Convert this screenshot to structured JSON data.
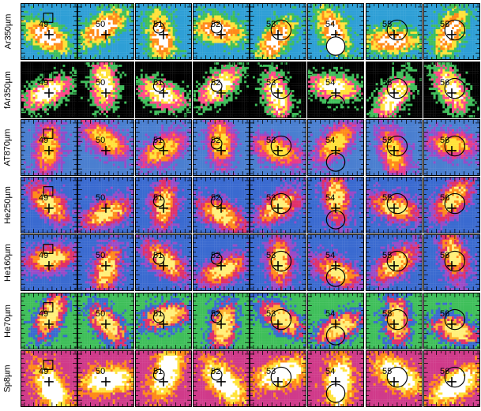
{
  "rows": [
    {
      "label": "Ar350µm",
      "palette": "ar"
    },
    {
      "label": "fAr350µm",
      "palette": "far"
    },
    {
      "label": "AT870µm",
      "palette": "at"
    },
    {
      "label": "He250µm",
      "palette": "he"
    },
    {
      "label": "He160µm",
      "palette": "he"
    },
    {
      "label": "He70µm",
      "palette": "he70"
    },
    {
      "label": "Sp8µm",
      "palette": "sp"
    }
  ],
  "columns": [
    {
      "number": "49",
      "marker": "square"
    },
    {
      "number": "50",
      "marker": "none"
    },
    {
      "number": "51",
      "marker": "small-circle"
    },
    {
      "number": "52",
      "marker": "small-circle"
    },
    {
      "number": "53",
      "marker": "circle"
    },
    {
      "number": "54",
      "marker": "low-circle"
    },
    {
      "number": "55",
      "marker": "circle"
    },
    {
      "number": "56",
      "marker": "circle"
    }
  ],
  "palettes": {
    "ar": [
      "#2e9fd6",
      "#3fbf5a",
      "#ffe23a",
      "#ff8a1a",
      "#ffffff"
    ],
    "far": [
      "#000000",
      "#3fbf5a",
      "#ff4a8a",
      "#ffe23a",
      "#ffffff"
    ],
    "at": [
      "#4a7fd0",
      "#9a4ac8",
      "#e83a8a",
      "#ff8a1a",
      "#ffe23a"
    ],
    "he": [
      "#3a6ad0",
      "#9a4ac8",
      "#e0306a",
      "#ff8a1a",
      "#fff07a"
    ],
    "he70": [
      "#3fbf5a",
      "#3a6ad0",
      "#e0306a",
      "#ffb030",
      "#fff07a"
    ],
    "sp": [
      "#d03a8a",
      "#ff8a1a",
      "#ffe23a",
      "#ffffff",
      "#ffffff"
    ]
  }
}
